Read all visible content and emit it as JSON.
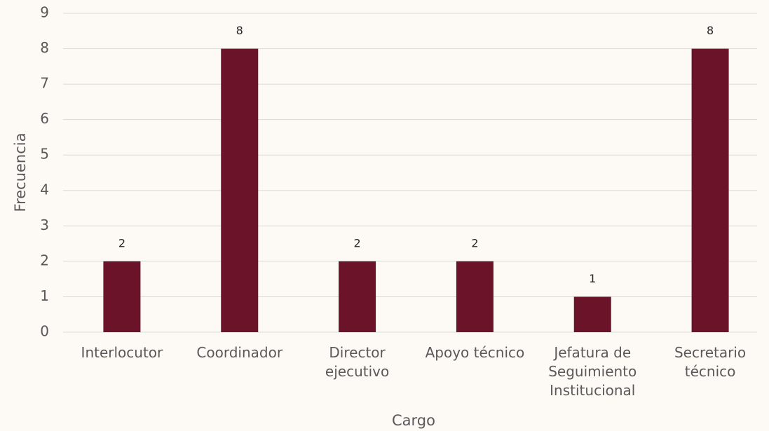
{
  "chart_data": {
    "type": "bar",
    "x_label": "Cargo",
    "y_label": "Frecuencia",
    "categories": [
      "Interlocutor",
      "Coordinador",
      "Director ejecutivo",
      "Apoyo técnico",
      "Jefatura de Seguimiento Institucional",
      "Secretario técnico"
    ],
    "values": [
      2,
      8,
      2,
      2,
      1,
      8
    ],
    "color": "#6b1329",
    "ylim": [
      0,
      9
    ],
    "yticks": [
      0,
      1,
      2,
      3,
      4,
      5,
      6,
      7,
      8,
      9
    ],
    "grid": true
  }
}
